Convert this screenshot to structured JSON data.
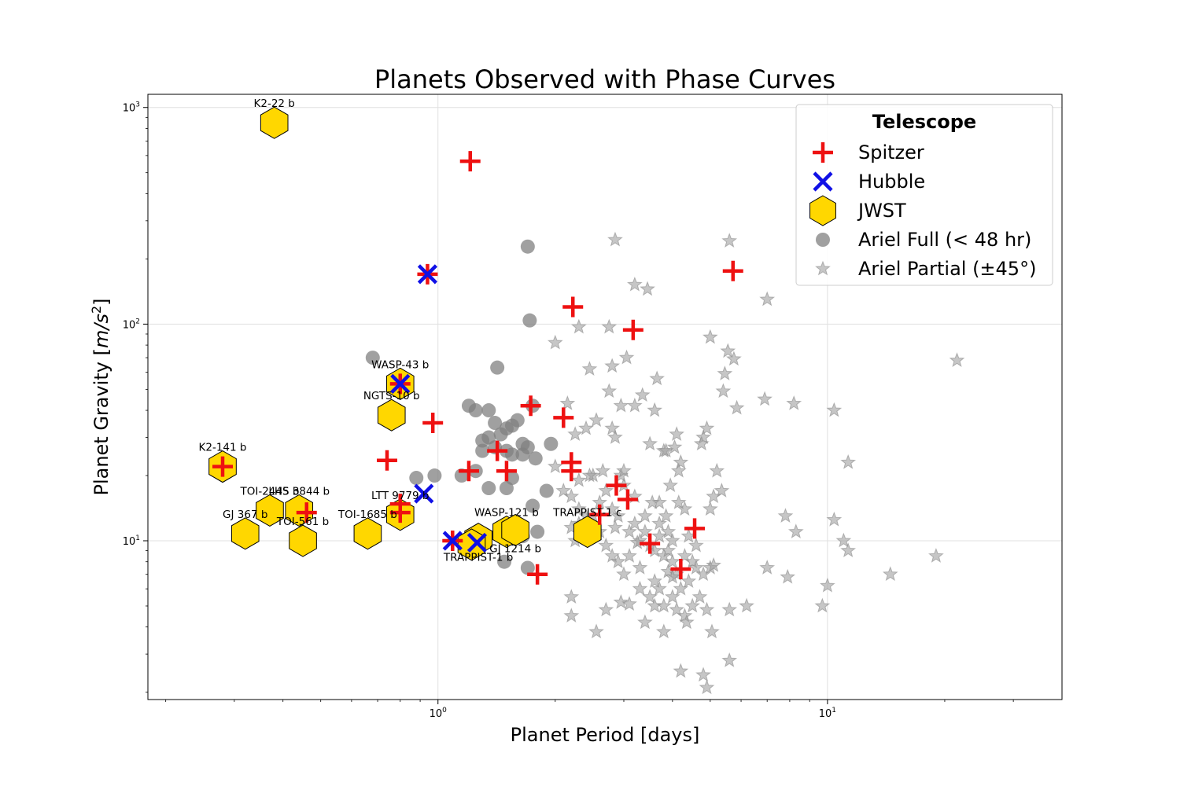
{
  "chart_data": {
    "type": "scatter",
    "title": "Planets Observed with Phase Curves",
    "xlabel": "Planet Period [days]",
    "ylabel_prefix": "Planet Gravity [",
    "ylabel_unit_m": "m",
    "ylabel_unit_s": "s",
    "ylabel_exp": "2",
    "ylabel_suffix": "]",
    "xscale": "log",
    "yscale": "log",
    "xlim": [
      0.18,
      40
    ],
    "ylim": [
      1.85,
      1150
    ],
    "grid": true,
    "x_ticks": [
      {
        "base": "10",
        "exp": "0",
        "value": 1
      },
      {
        "base": "10",
        "exp": "1",
        "value": 10
      }
    ],
    "y_ticks": [
      {
        "base": "10",
        "exp": "1",
        "value": 10
      },
      {
        "base": "10",
        "exp": "2",
        "value": 100
      },
      {
        "base": "10",
        "exp": "3",
        "value": 1000
      }
    ],
    "legend": {
      "title": "Telescope",
      "placement": "upper right",
      "entries": [
        {
          "label": "Spitzer",
          "marker": "plus",
          "color": "#ee1111"
        },
        {
          "label": "Hubble",
          "marker": "x",
          "color": "#1010e6"
        },
        {
          "label": "JWST",
          "marker": "hexagon",
          "color": "#ffd700"
        },
        {
          "label": "Ariel Full (< 48 hr)",
          "marker": "circle",
          "color": "#808080"
        },
        {
          "label": "Ariel Partial (±45°)",
          "marker": "star",
          "color": "#a0a0a0"
        }
      ]
    },
    "series": [
      {
        "name": "Ariel Partial (±45°)",
        "marker": "star",
        "points": [
          [
            2.0,
            82
          ],
          [
            2.3,
            97
          ],
          [
            2.45,
            62
          ],
          [
            2.75,
            97
          ],
          [
            2.85,
            245
          ],
          [
            2.8,
            64
          ],
          [
            2.75,
            49
          ],
          [
            3.05,
            70
          ],
          [
            3.2,
            152
          ],
          [
            3.45,
            145
          ],
          [
            3.65,
            56
          ],
          [
            3.35,
            47
          ],
          [
            3.2,
            42
          ],
          [
            3.6,
            40
          ],
          [
            2.95,
            42
          ],
          [
            2.4,
            33
          ],
          [
            2.25,
            31
          ],
          [
            2.55,
            36
          ],
          [
            2.8,
            33
          ],
          [
            2.85,
            30
          ],
          [
            3.5,
            28
          ],
          [
            3.8,
            26
          ],
          [
            4.1,
            31
          ],
          [
            4.05,
            27
          ],
          [
            3.85,
            26
          ],
          [
            4.2,
            23
          ],
          [
            4.15,
            21
          ],
          [
            3.95,
            18
          ],
          [
            4.9,
            33
          ],
          [
            4.8,
            30
          ],
          [
            4.75,
            28
          ],
          [
            5.0,
            87
          ],
          [
            5.55,
            75
          ],
          [
            5.6,
            242
          ],
          [
            5.75,
            69
          ],
          [
            5.45,
            59
          ],
          [
            5.4,
            49
          ],
          [
            5.85,
            41
          ],
          [
            7.0,
            130
          ],
          [
            6.9,
            45
          ],
          [
            8.2,
            43
          ],
          [
            10.4,
            40
          ],
          [
            21.5,
            68
          ],
          [
            11.3,
            23
          ],
          [
            5.2,
            21
          ],
          [
            5.35,
            17
          ],
          [
            5.1,
            16
          ],
          [
            5.0,
            14
          ],
          [
            4.3,
            14
          ],
          [
            4.15,
            15
          ],
          [
            3.85,
            13
          ],
          [
            3.7,
            15
          ],
          [
            3.55,
            15
          ],
          [
            3.2,
            16
          ],
          [
            3.0,
            18
          ],
          [
            2.95,
            20
          ],
          [
            3.0,
            21
          ],
          [
            2.65,
            21
          ],
          [
            2.5,
            20
          ],
          [
            2.3,
            19
          ],
          [
            2.1,
            17
          ],
          [
            2.2,
            16
          ],
          [
            2.3,
            14
          ],
          [
            2.5,
            13
          ],
          [
            2.6,
            15
          ],
          [
            2.7,
            17
          ],
          [
            2.8,
            14
          ],
          [
            2.9,
            13
          ],
          [
            3.1,
            11
          ],
          [
            3.3,
            10
          ],
          [
            3.4,
            11
          ],
          [
            3.5,
            9.5
          ],
          [
            3.6,
            9
          ],
          [
            3.8,
            8.5
          ],
          [
            3.9,
            9
          ],
          [
            4.0,
            8
          ],
          [
            4.1,
            7
          ],
          [
            4.3,
            8.5
          ],
          [
            4.5,
            8
          ],
          [
            4.6,
            7.5
          ],
          [
            4.8,
            7
          ],
          [
            5.0,
            7.5
          ],
          [
            5.1,
            7.7
          ],
          [
            2.7,
            9.5
          ],
          [
            2.8,
            8.5
          ],
          [
            2.9,
            8
          ],
          [
            3.1,
            8.5
          ],
          [
            3.3,
            6
          ],
          [
            3.5,
            5.5
          ],
          [
            3.6,
            5
          ],
          [
            3.7,
            6
          ],
          [
            3.8,
            5
          ],
          [
            4.0,
            5.5
          ],
          [
            4.1,
            4.8
          ],
          [
            4.3,
            4.5
          ],
          [
            4.5,
            5
          ],
          [
            4.7,
            5.5
          ],
          [
            4.9,
            4.8
          ],
          [
            5.6,
            4.8
          ],
          [
            6.2,
            5
          ],
          [
            7.0,
            7.5
          ],
          [
            7.9,
            6.8
          ],
          [
            9.7,
            5
          ],
          [
            10.0,
            6.2
          ],
          [
            14.5,
            7
          ],
          [
            19.0,
            8.5
          ],
          [
            11.0,
            10
          ],
          [
            11.3,
            9
          ],
          [
            10.4,
            12.5
          ],
          [
            7.8,
            13
          ],
          [
            8.3,
            11
          ],
          [
            2.2,
            5.5
          ],
          [
            2.2,
            4.5
          ],
          [
            2.55,
            3.8
          ],
          [
            2.7,
            4.8
          ],
          [
            2.95,
            5.2
          ],
          [
            3.1,
            5.1
          ],
          [
            3.4,
            4.2
          ],
          [
            3.8,
            3.8
          ],
          [
            4.2,
            2.5
          ],
          [
            4.8,
            2.4
          ],
          [
            4.9,
            2.1
          ],
          [
            5.05,
            3.8
          ],
          [
            5.6,
            2.8
          ],
          [
            4.35,
            4.2
          ],
          [
            2.4,
            13
          ],
          [
            2.3,
            12
          ],
          [
            2.6,
            11
          ],
          [
            2.2,
            11.5
          ],
          [
            2.25,
            10
          ],
          [
            3.2,
            12
          ],
          [
            3.4,
            13
          ],
          [
            3.7,
            12
          ],
          [
            3.9,
            11
          ],
          [
            4.0,
            10
          ],
          [
            4.4,
            10.5
          ],
          [
            4.6,
            9.5
          ],
          [
            3.25,
            9.8
          ],
          [
            3.7,
            10.5
          ],
          [
            2.85,
            11.5
          ],
          [
            2.0,
            22
          ],
          [
            2.15,
            43
          ],
          [
            2.45,
            20
          ],
          [
            3.0,
            7
          ],
          [
            3.3,
            7.5
          ],
          [
            3.6,
            6.5
          ],
          [
            4.2,
            6
          ],
          [
            4.4,
            6.5
          ],
          [
            4.0,
            6.8
          ],
          [
            3.9,
            7.2
          ]
        ]
      },
      {
        "name": "Ariel Full (< 48 hr)",
        "marker": "circle",
        "points": [
          [
            0.68,
            70
          ],
          [
            1.7,
            228
          ],
          [
            1.72,
            104
          ],
          [
            1.42,
            63
          ],
          [
            1.2,
            42
          ],
          [
            1.25,
            40
          ],
          [
            1.35,
            40
          ],
          [
            1.4,
            35
          ],
          [
            1.55,
            34
          ],
          [
            1.6,
            36
          ],
          [
            1.5,
            33
          ],
          [
            1.45,
            31
          ],
          [
            1.35,
            30
          ],
          [
            1.3,
            29
          ],
          [
            1.4,
            27
          ],
          [
            1.5,
            26
          ],
          [
            1.55,
            25
          ],
          [
            1.65,
            28
          ],
          [
            1.7,
            27
          ],
          [
            1.78,
            24
          ],
          [
            1.95,
            28
          ],
          [
            1.65,
            25
          ],
          [
            1.75,
            42
          ],
          [
            0.88,
            19.5
          ],
          [
            0.98,
            20
          ],
          [
            1.25,
            21
          ],
          [
            1.35,
            17.5
          ],
          [
            1.5,
            17.5
          ],
          [
            1.55,
            19.5
          ],
          [
            1.9,
            17
          ],
          [
            1.75,
            14.5
          ],
          [
            1.8,
            11
          ],
          [
            1.55,
            10.5
          ],
          [
            1.48,
            8
          ],
          [
            1.65,
            10.5
          ],
          [
            1.7,
            7.5
          ],
          [
            1.15,
            20
          ],
          [
            1.3,
            26
          ]
        ]
      },
      {
        "name": "JWST",
        "marker": "hexagon",
        "points": [
          [
            0.38,
            850
          ],
          [
            0.28,
            22
          ],
          [
            0.32,
            10.8
          ],
          [
            0.37,
            13.8
          ],
          [
            0.44,
            13.8
          ],
          [
            0.45,
            10
          ],
          [
            0.66,
            10.8
          ],
          [
            0.76,
            38
          ],
          [
            0.8,
            53
          ],
          [
            0.8,
            13.2
          ],
          [
            1.27,
            10.2
          ],
          [
            1.22,
            9.6
          ],
          [
            1.5,
            11
          ],
          [
            1.58,
            11.2
          ],
          [
            2.42,
            11
          ]
        ]
      },
      {
        "name": "Spitzer",
        "marker": "plus",
        "points": [
          [
            1.21,
            565
          ],
          [
            0.94,
            170
          ],
          [
            2.22,
            120
          ],
          [
            3.17,
            94
          ],
          [
            5.72,
            176
          ],
          [
            0.8,
            53
          ],
          [
            0.97,
            35
          ],
          [
            1.73,
            42
          ],
          [
            2.1,
            37
          ],
          [
            0.74,
            23.5
          ],
          [
            1.42,
            26
          ],
          [
            1.2,
            21
          ],
          [
            1.5,
            21
          ],
          [
            2.2,
            23
          ],
          [
            2.2,
            21
          ],
          [
            0.28,
            22
          ],
          [
            0.46,
            13.5
          ],
          [
            0.8,
            13.5
          ],
          [
            0.8,
            14.8
          ],
          [
            2.87,
            18
          ],
          [
            3.07,
            15.5
          ],
          [
            2.6,
            13.2
          ],
          [
            4.56,
            11.4
          ],
          [
            3.5,
            9.7
          ],
          [
            4.2,
            7.4
          ],
          [
            1.8,
            7
          ],
          [
            1.09,
            10
          ]
        ]
      },
      {
        "name": "Hubble",
        "marker": "x",
        "points": [
          [
            0.94,
            170
          ],
          [
            0.8,
            53
          ],
          [
            0.92,
            16.5
          ],
          [
            1.09,
            10
          ],
          [
            1.26,
            9.8
          ]
        ]
      }
    ],
    "annotations": [
      {
        "text": "K2-22 b",
        "x": 0.38,
        "y": 850,
        "dy": -20
      },
      {
        "text": "WASP-43 b",
        "x": 0.8,
        "y": 53,
        "dy": -20
      },
      {
        "text": "NGTS-10 b",
        "x": 0.76,
        "y": 38,
        "dy": -20
      },
      {
        "text": "K2-141 b",
        "x": 0.28,
        "y": 22,
        "dy": -20
      },
      {
        "text": "TOI-2445 b",
        "x": 0.37,
        "y": 13.8,
        "dy": -20
      },
      {
        "text": "LHS 3844 b",
        "x": 0.44,
        "y": 13.8,
        "dy": -20
      },
      {
        "text": "GJ 367 b",
        "x": 0.32,
        "y": 10.8,
        "dy": -20
      },
      {
        "text": "TOI-561 b",
        "x": 0.45,
        "y": 10,
        "dy": -20
      },
      {
        "text": "TOI-1685 b",
        "x": 0.66,
        "y": 10.8,
        "dy": -20
      },
      {
        "text": "LTT 9779 b",
        "x": 0.8,
        "y": 13.2,
        "dy": -20
      },
      {
        "text": "WASP-121 b",
        "x": 1.5,
        "y": 11,
        "dy": -20
      },
      {
        "text": "TRAPPIST-1 c",
        "x": 2.42,
        "y": 11,
        "dy": -20
      },
      {
        "text": "TRAPPIST-1 b",
        "x": 1.27,
        "y": 10.2,
        "dy": 20
      },
      {
        "text": "GJ 1214 b",
        "x": 1.58,
        "y": 11.2,
        "dy": 20
      }
    ]
  }
}
